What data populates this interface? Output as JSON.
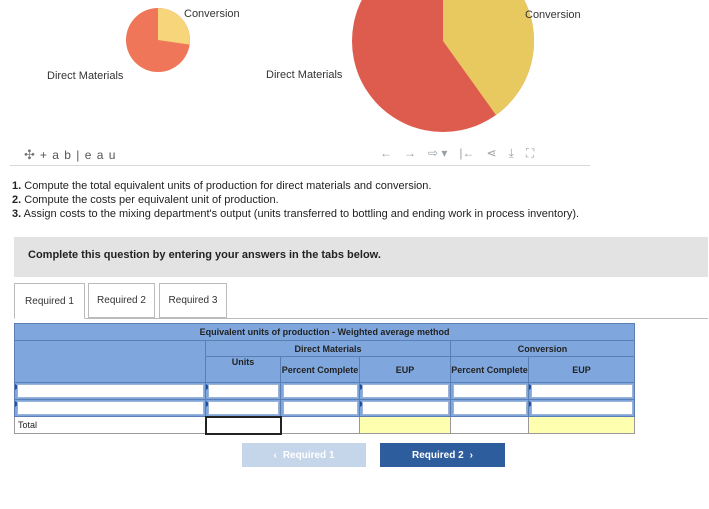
{
  "charts": {
    "left_pie": {
      "label_top": "Conversion",
      "label_bottom": "Direct Materials",
      "colors": {
        "direct_materials": "#ef7659",
        "conversion": "#f7d57a"
      }
    },
    "right_pie": {
      "label_top": "Conversion",
      "label_left": "Direct Materials",
      "colors": {
        "direct_materials": "#de5c4e",
        "conversion": "#e8c960"
      }
    }
  },
  "chart_data": [
    {
      "type": "pie",
      "categories": [
        "Conversion",
        "Direct Materials"
      ],
      "values": [
        0.28,
        0.72
      ]
    },
    {
      "type": "pie",
      "categories": [
        "Conversion",
        "Direct Materials"
      ],
      "values": [
        0.4,
        0.6
      ]
    }
  ],
  "toolbar": {
    "logo_text": "+ a b | e a u",
    "icons": [
      "undo-icon",
      "redo-icon",
      "revert-icon",
      "reset-icon",
      "share-icon",
      "download-icon",
      "fullscreen-icon"
    ]
  },
  "instructions": [
    {
      "num": "1.",
      "text": "Compute the total equivalent units of production for direct materials and conversion."
    },
    {
      "num": "2.",
      "text": "Compute the costs per equivalent unit of production."
    },
    {
      "num": "3.",
      "text": "Assign costs to the mixing department's output (units transferred to bottling and ending work in process inventory)."
    }
  ],
  "banner": "Complete this question by entering your answers in the tabs below.",
  "tabs": [
    "Required 1",
    "Required 2",
    "Required 3"
  ],
  "table": {
    "title": "Equivalent units of production - Weighted average method",
    "group_direct": "Direct Materials",
    "group_conversion": "Conversion",
    "col_units": "Units",
    "col_percent": "Percent Complete",
    "col_eup": "EUP",
    "total_label": "Total"
  },
  "nav": {
    "prev": "Required 1",
    "next": "Required 2"
  }
}
